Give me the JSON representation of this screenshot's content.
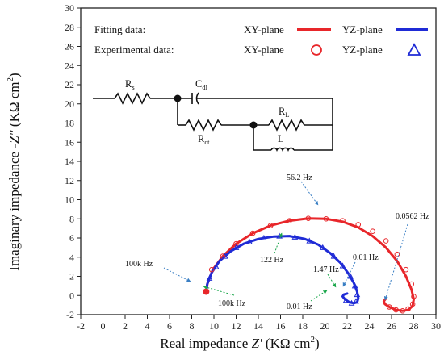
{
  "chart_data": {
    "type": "scatter",
    "xlabel_prefix": "Real impedance ",
    "xlabel_var": "Z'",
    "xlabel_unit": " (KΩ cm",
    "xlabel_sup": "2",
    "xlabel_close": ")",
    "ylabel_prefix": "Imaginary impedance -",
    "ylabel_var": "Z''",
    "ylabel_unit": " (KΩ cm",
    "ylabel_sup": "2",
    "ylabel_close": ")",
    "xlim": [
      -2,
      30
    ],
    "ylim": [
      -2,
      30
    ],
    "x_ticks": [
      "-2",
      "0",
      "2",
      "4",
      "6",
      "8",
      "10",
      "12",
      "14",
      "16",
      "18",
      "20",
      "22",
      "24",
      "26",
      "28",
      "30"
    ],
    "y_ticks": [
      "-2",
      "0",
      "2",
      "4",
      "6",
      "8",
      "10",
      "12",
      "14",
      "16",
      "18",
      "20",
      "22",
      "24",
      "26",
      "28",
      "30"
    ],
    "grid": false,
    "colors": {
      "xy": "#e8262a",
      "yz": "#1f2bd6",
      "annot_blue": "#3a7fc4",
      "annot_green": "#19a64a"
    },
    "legend": {
      "fitting_label": "Fitting data:",
      "experimental_label": "Experimental data:",
      "fit_xy": "XY-plane",
      "fit_yz": "YZ-plane",
      "exp_xy": "XY-plane",
      "exp_yz": "YZ-plane"
    },
    "circuit": {
      "rs": "R",
      "rs_sub": "s",
      "cdl": "C",
      "cdl_sub": "dl",
      "rct": "R",
      "rct_sub": "ct",
      "rl": "R",
      "rl_sub": "L",
      "l": "L"
    },
    "annotations": [
      {
        "text": "56.2 Hz"
      },
      {
        "text": "0.0562 Hz"
      },
      {
        "text": "100k Hz"
      },
      {
        "text": "122 Hz"
      },
      {
        "text": "1.47 Hz"
      },
      {
        "text": "0.01 Hz"
      },
      {
        "text": "100k Hz"
      },
      {
        "text": "0.01 Hz"
      }
    ],
    "series": [
      {
        "name": "XY-plane",
        "kind": "fitting",
        "x": [
          9.3,
          9.4,
          9.9,
          10.8,
          12.0,
          13.5,
          15.1,
          16.8,
          18.5,
          20.1,
          21.6,
          23.0,
          24.3,
          25.5,
          26.5,
          27.3,
          27.8,
          28.0,
          27.9,
          27.5,
          27.0,
          26.4,
          25.8,
          25.4,
          25.3,
          25.5
        ],
        "y": [
          0.4,
          1.2,
          2.7,
          4.1,
          5.4,
          6.5,
          7.3,
          7.8,
          8.05,
          8.0,
          7.7,
          7.1,
          6.2,
          5.0,
          3.6,
          2.0,
          0.6,
          -0.4,
          -1.1,
          -1.5,
          -1.6,
          -1.5,
          -1.2,
          -0.9,
          -0.6,
          -0.3
        ]
      },
      {
        "name": "YZ-plane",
        "kind": "fitting",
        "x": [
          9.3,
          9.4,
          9.8,
          10.5,
          11.5,
          12.7,
          14.0,
          15.4,
          16.8,
          18.2,
          19.4,
          20.5,
          21.4,
          22.1,
          22.6,
          22.9,
          23.0,
          22.9,
          22.6,
          22.2,
          21.8,
          21.6,
          21.7,
          22.0
        ],
        "y": [
          0.4,
          1.2,
          2.4,
          3.6,
          4.6,
          5.4,
          5.9,
          6.15,
          6.2,
          5.9,
          5.3,
          4.4,
          3.4,
          2.3,
          1.3,
          0.4,
          -0.3,
          -0.7,
          -0.8,
          -0.7,
          -0.4,
          -0.1,
          0.1,
          0.2
        ]
      },
      {
        "name": "XY-plane",
        "kind": "experimental",
        "x": [
          9.8,
          10.8,
          12.0,
          13.5,
          15.1,
          16.8,
          18.5,
          20.1,
          21.6,
          23.0,
          24.3,
          25.5,
          26.5,
          27.3,
          27.8,
          28.0,
          27.9,
          27.5,
          27.0,
          26.4,
          25.8
        ],
        "y": [
          2.7,
          4.1,
          5.4,
          6.5,
          7.3,
          7.8,
          8.05,
          8.0,
          7.8,
          7.4,
          6.7,
          5.7,
          4.3,
          2.7,
          1.2,
          -0.1,
          -0.9,
          -1.4,
          -1.6,
          -1.5,
          -1.2
        ]
      },
      {
        "name": "YZ-plane",
        "kind": "experimental",
        "x": [
          9.6,
          10.2,
          11.0,
          12.0,
          13.2,
          14.5,
          15.9,
          17.3,
          18.6,
          19.8,
          20.8,
          21.6,
          22.3,
          22.7,
          22.9,
          22.8,
          22.4,
          21.9
        ],
        "y": [
          1.8,
          3.0,
          4.1,
          5.0,
          5.6,
          6.0,
          6.2,
          6.1,
          5.7,
          5.0,
          4.1,
          3.1,
          2.0,
          1.0,
          0.1,
          -0.6,
          -0.8,
          -0.5
        ]
      }
    ]
  }
}
